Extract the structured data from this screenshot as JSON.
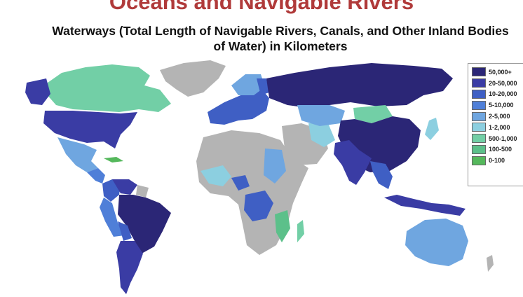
{
  "slide_title": "Oceans and Navigable Rivers",
  "map_title": {
    "line1": "Waterways (Total Length of Navigable Rivers, Canals, and Other Inland Bodies",
    "line2": "of Water) in Kilometers"
  },
  "legend": {
    "items": [
      {
        "label": "50,000+",
        "color": "#2b2676"
      },
      {
        "label": "20-50,000",
        "color": "#3a3ca4"
      },
      {
        "label": "10-20,000",
        "color": "#3f5fc4"
      },
      {
        "label": "5-10,000",
        "color": "#4f7fd8"
      },
      {
        "label": "2-5,000",
        "color": "#6fa6e0"
      },
      {
        "label": "1-2,000",
        "color": "#8ccfe0"
      },
      {
        "label": "500-1,000",
        "color": "#72cfa6"
      },
      {
        "label": "100-500",
        "color": "#5cc08a"
      },
      {
        "label": "0-100",
        "color": "#55b85c"
      }
    ]
  },
  "colors": {
    "no_data": "#b4b4b4",
    "title_red": "#b03a3a"
  }
}
